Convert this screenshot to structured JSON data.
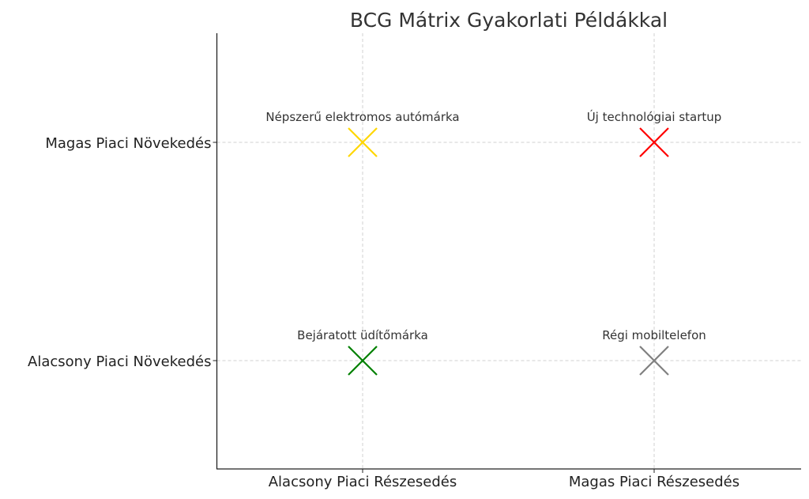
{
  "chart_data": {
    "type": "scatter",
    "title": "BCG Mátrix Gyakorlati Példákkal",
    "xlabel": "",
    "ylabel": "",
    "x_categories": [
      "Alacsony Piaci Részesedés",
      "Magas Piaci Részesedés"
    ],
    "y_categories": [
      "Alacsony Piaci Növekedés",
      "Magas Piaci Növekedés"
    ],
    "marker": "x",
    "grid": true,
    "points": [
      {
        "label": "Népszerű elektromos autómárka",
        "x": "Alacsony Piaci Részesedés",
        "y": "Magas Piaci Növekedés",
        "color": "#ffd700"
      },
      {
        "label": "Új technológiai startup",
        "x": "Magas Piaci Részesedés",
        "y": "Magas Piaci Növekedés",
        "color": "#ff0000"
      },
      {
        "label": "Bejáratott üdítőmárka",
        "x": "Alacsony Piaci Részesedés",
        "y": "Alacsony Piaci Növekedés",
        "color": "#008000"
      },
      {
        "label": "Régi mobiltelefon",
        "x": "Magas Piaci Részesedés",
        "y": "Alacsony Piaci Növekedés",
        "color": "#808080"
      }
    ]
  }
}
